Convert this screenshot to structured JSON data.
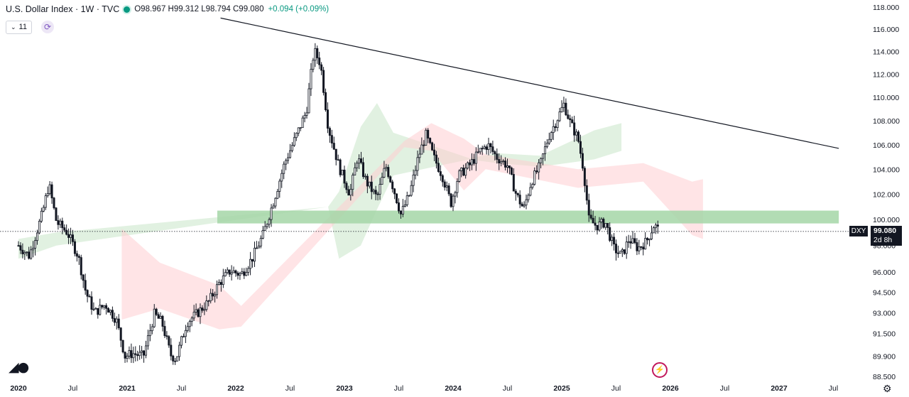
{
  "header": {
    "symbol_title": "U.S. Dollar Index · 1W · TVC",
    "ohlc": "O98.967 H99.312 L98.794 C99.080",
    "change": "+0.094 (+0.09%)",
    "interval_value": "11"
  },
  "price_tag": {
    "symbol": "DXY",
    "price": "99.080",
    "countdown": "2d 8h"
  },
  "chart_data": {
    "type": "candlestick",
    "title": "U.S. Dollar Index · 1W · TVC",
    "y_axis_ticks": [
      "118.000",
      "116.000",
      "114.000",
      "112.000",
      "110.000",
      "108.000",
      "106.000",
      "104.000",
      "102.000",
      "100.000",
      "98.000",
      "96.000",
      "94.500",
      "93.000",
      "91.500",
      "89.900",
      "88.500"
    ],
    "ylim": [
      88.5,
      118.0
    ],
    "x_axis_ticks": [
      "2020",
      "Jul",
      "2021",
      "Jul",
      "2022",
      "Jul",
      "2023",
      "Jul",
      "2024",
      "Jul",
      "2025",
      "Jul",
      "2026",
      "Jul",
      "2027",
      "Jul"
    ],
    "xlim": [
      2020.0,
      2027.75
    ],
    "log_scale": true,
    "last_price": 99.08,
    "support_zone": {
      "x_start": 2021.83,
      "x_end": 2027.55,
      "low": 99.7,
      "high": 100.7,
      "color": "#a5d6a7"
    },
    "trendline": {
      "x_start": 2021.86,
      "y_start": 117.0,
      "x_end": 2027.55,
      "y_end": 105.7
    },
    "price_path": [
      [
        2020.0,
        98.0
      ],
      [
        2020.1,
        97.2
      ],
      [
        2020.22,
        100.5
      ],
      [
        2020.28,
        102.8
      ],
      [
        2020.35,
        99.8
      ],
      [
        2020.45,
        99.0
      ],
      [
        2020.55,
        97.2
      ],
      [
        2020.62,
        94.5
      ],
      [
        2020.7,
        93.0
      ],
      [
        2020.8,
        93.6
      ],
      [
        2020.9,
        92.5
      ],
      [
        2020.98,
        89.9
      ],
      [
        2021.05,
        90.1
      ],
      [
        2021.15,
        89.9
      ],
      [
        2021.25,
        92.9
      ],
      [
        2021.32,
        92.3
      ],
      [
        2021.4,
        90.0
      ],
      [
        2021.45,
        89.7
      ],
      [
        2021.55,
        92.3
      ],
      [
        2021.65,
        93.0
      ],
      [
        2021.75,
        93.8
      ],
      [
        2021.85,
        95.2
      ],
      [
        2021.95,
        96.1
      ],
      [
        2022.05,
        95.8
      ],
      [
        2022.15,
        97.0
      ],
      [
        2022.25,
        98.8
      ],
      [
        2022.35,
        101.5
      ],
      [
        2022.45,
        104.5
      ],
      [
        2022.55,
        106.6
      ],
      [
        2022.65,
        108.8
      ],
      [
        2022.72,
        114.1
      ],
      [
        2022.78,
        112.9
      ],
      [
        2022.85,
        107.5
      ],
      [
        2022.95,
        104.2
      ],
      [
        2023.05,
        102.0
      ],
      [
        2023.12,
        105.0
      ],
      [
        2023.2,
        103.0
      ],
      [
        2023.3,
        101.7
      ],
      [
        2023.38,
        104.3
      ],
      [
        2023.45,
        102.5
      ],
      [
        2023.52,
        100.4
      ],
      [
        2023.6,
        102.0
      ],
      [
        2023.68,
        105.0
      ],
      [
        2023.75,
        106.8
      ],
      [
        2023.82,
        105.0
      ],
      [
        2023.9,
        103.5
      ],
      [
        2023.98,
        101.3
      ],
      [
        2024.05,
        103.5
      ],
      [
        2024.15,
        104.3
      ],
      [
        2024.25,
        105.5
      ],
      [
        2024.32,
        106.0
      ],
      [
        2024.4,
        105.0
      ],
      [
        2024.5,
        104.3
      ],
      [
        2024.58,
        102.0
      ],
      [
        2024.65,
        100.8
      ],
      [
        2024.72,
        103.0
      ],
      [
        2024.8,
        104.3
      ],
      [
        2024.88,
        106.7
      ],
      [
        2024.95,
        108.0
      ],
      [
        2025.02,
        109.4
      ],
      [
        2025.08,
        107.8
      ],
      [
        2025.15,
        106.5
      ],
      [
        2025.2,
        104.0
      ],
      [
        2025.25,
        100.0
      ],
      [
        2025.32,
        99.5
      ],
      [
        2025.4,
        99.8
      ],
      [
        2025.48,
        97.8
      ],
      [
        2025.55,
        97.2
      ],
      [
        2025.62,
        98.5
      ],
      [
        2025.7,
        97.8
      ],
      [
        2025.78,
        98.3
      ],
      [
        2025.85,
        99.6
      ],
      [
        2025.9,
        99.08
      ]
    ],
    "cloud_green": [
      [
        2020.0,
        97.0,
        98.5
      ],
      [
        2020.35,
        98.0,
        99.0
      ],
      [
        2022.85,
        101.0,
        101.0
      ],
      [
        2022.95,
        97.0,
        102.2
      ],
      [
        2023.15,
        98.0,
        107.5
      ],
      [
        2023.3,
        100.8,
        109.5
      ],
      [
        2023.45,
        103.5,
        107.0
      ],
      [
        2024.15,
        104.8,
        104.9
      ],
      [
        2024.4,
        104.5,
        105.3
      ],
      [
        2024.8,
        104.2,
        105.1
      ],
      [
        2025.3,
        104.8,
        107.2
      ],
      [
        2025.55,
        105.5,
        107.8
      ]
    ],
    "cloud_red": [
      [
        2020.95,
        92.5,
        99.3
      ],
      [
        2021.3,
        93.3,
        96.7
      ],
      [
        2021.85,
        91.8,
        95.0
      ],
      [
        2022.05,
        92.0,
        93.5
      ],
      [
        2023.55,
        105.8,
        106.3
      ],
      [
        2023.8,
        105.5,
        107.8
      ],
      [
        2024.1,
        102.3,
        106.5
      ],
      [
        2024.3,
        104.0,
        105.2
      ],
      [
        2025.15,
        102.5,
        104.0
      ],
      [
        2025.75,
        103.0,
        104.5
      ],
      [
        2026.2,
        98.8,
        103.0
      ],
      [
        2026.3,
        98.5,
        103.2
      ]
    ]
  }
}
